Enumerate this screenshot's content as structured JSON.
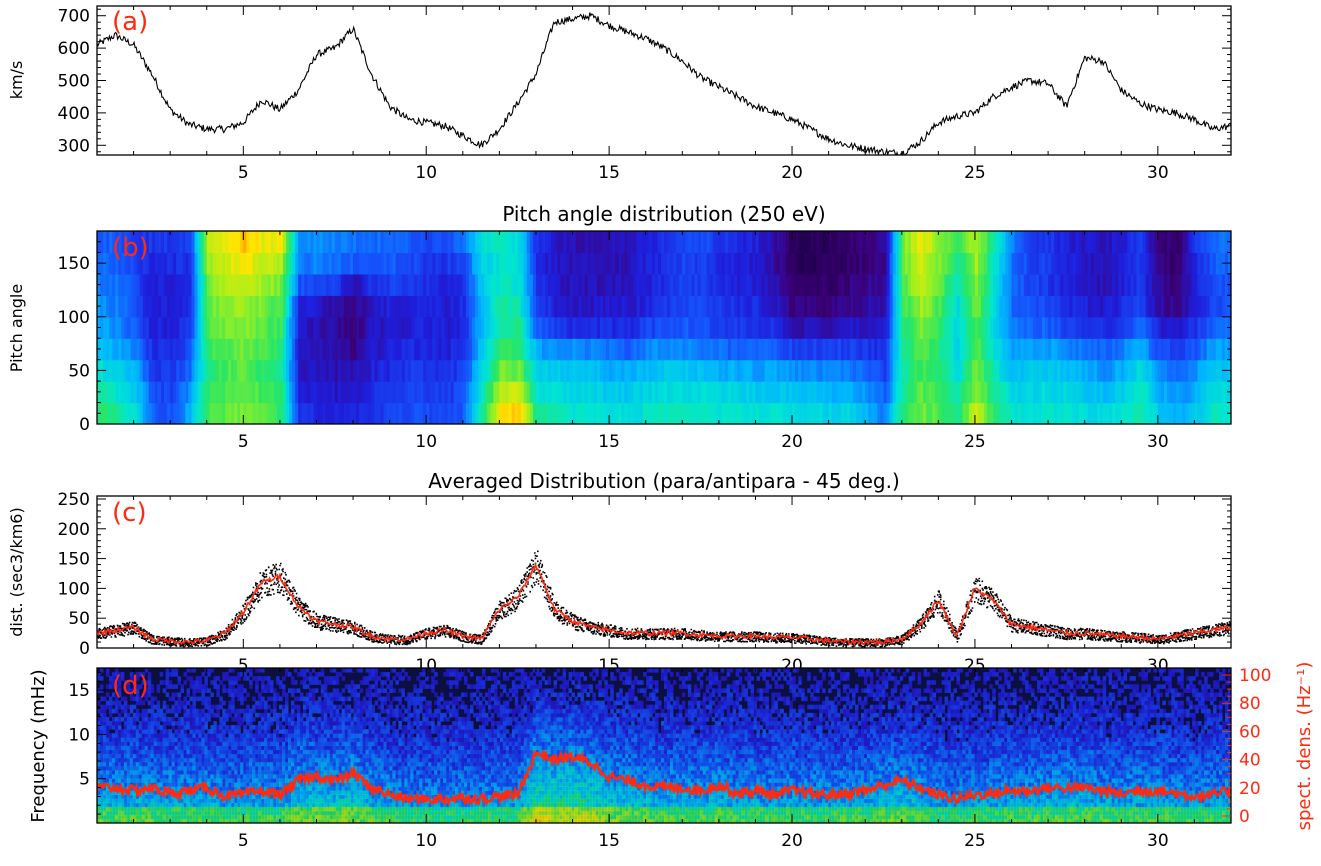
{
  "chart_data": [
    {
      "type": "line",
      "panel_label": "(a)",
      "title": "",
      "xlabel": "",
      "ylabel": "km/s",
      "xlim": [
        1,
        32
      ],
      "ylim": [
        270,
        730
      ],
      "yticks": [
        300,
        400,
        500,
        600,
        700
      ],
      "xticks": [
        5,
        10,
        15,
        20,
        25,
        30
      ],
      "x": [
        1,
        1.5,
        2,
        2.5,
        3,
        3.5,
        4,
        4.5,
        5,
        5.5,
        6,
        6.5,
        7,
        7.5,
        8,
        8.5,
        9,
        9.5,
        10,
        10.5,
        11,
        11.5,
        12,
        12.5,
        13,
        13.5,
        14,
        14.5,
        15,
        15.5,
        16,
        16.5,
        17,
        17.5,
        18,
        18.5,
        19,
        19.5,
        20,
        20.5,
        21,
        21.5,
        22,
        22.5,
        23,
        23.5,
        24,
        24.5,
        25,
        25.5,
        26,
        26.5,
        27,
        27.5,
        28,
        28.5,
        29,
        29.5,
        30,
        30.5,
        31,
        31.5,
        32
      ],
      "series": [
        {
          "values": [
            610,
            640,
            610,
            520,
            410,
            365,
            350,
            350,
            370,
            440,
            410,
            470,
            580,
            600,
            660,
            520,
            420,
            380,
            370,
            360,
            330,
            300,
            350,
            430,
            520,
            680,
            690,
            700,
            670,
            650,
            630,
            600,
            560,
            510,
            480,
            450,
            420,
            400,
            380,
            350,
            320,
            300,
            290,
            280,
            275,
            310,
            370,
            390,
            400,
            450,
            480,
            500,
            490,
            420,
            570,
            560,
            470,
            430,
            410,
            400,
            380,
            350,
            360
          ]
        }
      ]
    },
    {
      "type": "heatmap",
      "panel_label": "(b)",
      "title": "Pitch angle distribution (250 eV)",
      "xlabel": "",
      "ylabel": "Pitch angle",
      "xlim": [
        1,
        32
      ],
      "ylim": [
        0,
        180
      ],
      "yticks": [
        0,
        50,
        100,
        150
      ],
      "xticks": [
        5,
        10,
        15,
        20,
        25,
        30
      ],
      "y_bins": [
        10,
        30,
        50,
        70,
        90,
        110,
        130,
        150,
        170
      ],
      "x_bins": [
        1.25,
        1.75,
        2.25,
        2.75,
        3.25,
        3.75,
        4.25,
        4.75,
        5.25,
        5.75,
        6.25,
        6.75,
        7.25,
        7.75,
        8.25,
        8.75,
        9.25,
        9.75,
        10.25,
        10.75,
        11.25,
        11.75,
        12.25,
        12.75,
        13.25,
        13.75,
        14.25,
        14.75,
        15.25,
        15.75,
        16.25,
        16.75,
        17.25,
        17.75,
        18.25,
        18.75,
        19.25,
        19.75,
        20.25,
        20.75,
        21.25,
        21.75,
        22.25,
        22.75,
        23.25,
        23.75,
        24.25,
        24.75,
        25.25,
        25.75,
        26.25,
        26.75,
        27.25,
        27.75,
        28.25,
        28.75,
        29.25,
        29.75,
        30.25,
        30.75,
        31.25,
        31.75
      ],
      "z": [
        [
          0.6,
          0.55,
          0.5,
          0.42,
          0.38,
          0.36,
          0.34,
          0.32,
          0.3
        ],
        [
          0.55,
          0.5,
          0.45,
          0.4,
          0.36,
          0.34,
          0.33,
          0.31,
          0.3
        ],
        [
          0.5,
          0.45,
          0.4,
          0.34,
          0.3,
          0.28,
          0.27,
          0.26,
          0.25
        ],
        [
          0.3,
          0.28,
          0.25,
          0.22,
          0.2,
          0.2,
          0.2,
          0.22,
          0.24
        ],
        [
          0.28,
          0.26,
          0.24,
          0.22,
          0.2,
          0.19,
          0.2,
          0.22,
          0.24
        ],
        [
          0.4,
          0.36,
          0.32,
          0.28,
          0.24,
          0.22,
          0.22,
          0.24,
          0.26
        ],
        [
          0.62,
          0.6,
          0.58,
          0.6,
          0.62,
          0.64,
          0.66,
          0.7,
          0.72
        ],
        [
          0.65,
          0.64,
          0.62,
          0.64,
          0.66,
          0.68,
          0.72,
          0.75,
          0.78
        ],
        [
          0.66,
          0.65,
          0.64,
          0.66,
          0.68,
          0.7,
          0.75,
          0.8,
          0.85
        ],
        [
          0.63,
          0.62,
          0.6,
          0.62,
          0.64,
          0.66,
          0.7,
          0.74,
          0.76
        ],
        [
          0.6,
          0.58,
          0.56,
          0.58,
          0.6,
          0.62,
          0.66,
          0.72,
          0.8
        ],
        [
          0.22,
          0.2,
          0.18,
          0.17,
          0.18,
          0.2,
          0.28,
          0.34,
          0.36
        ],
        [
          0.22,
          0.2,
          0.18,
          0.16,
          0.16,
          0.18,
          0.28,
          0.34,
          0.36
        ],
        [
          0.2,
          0.18,
          0.16,
          0.14,
          0.13,
          0.14,
          0.26,
          0.32,
          0.34
        ],
        [
          0.2,
          0.17,
          0.15,
          0.12,
          0.11,
          0.12,
          0.14,
          0.3,
          0.33
        ],
        [
          0.24,
          0.22,
          0.2,
          0.18,
          0.17,
          0.18,
          0.24,
          0.3,
          0.32
        ],
        [
          0.26,
          0.24,
          0.22,
          0.2,
          0.18,
          0.2,
          0.26,
          0.3,
          0.32
        ],
        [
          0.28,
          0.26,
          0.24,
          0.22,
          0.2,
          0.21,
          0.25,
          0.28,
          0.3
        ],
        [
          0.28,
          0.26,
          0.24,
          0.22,
          0.2,
          0.2,
          0.22,
          0.24,
          0.28
        ],
        [
          0.26,
          0.24,
          0.22,
          0.2,
          0.19,
          0.19,
          0.21,
          0.24,
          0.28
        ],
        [
          0.3,
          0.28,
          0.26,
          0.24,
          0.22,
          0.22,
          0.24,
          0.28,
          0.32
        ],
        [
          0.55,
          0.52,
          0.48,
          0.44,
          0.42,
          0.42,
          0.44,
          0.46,
          0.5
        ],
        [
          0.8,
          0.72,
          0.66,
          0.6,
          0.56,
          0.54,
          0.52,
          0.5,
          0.52
        ],
        [
          0.84,
          0.74,
          0.66,
          0.6,
          0.56,
          0.52,
          0.5,
          0.48,
          0.48
        ],
        [
          0.55,
          0.5,
          0.44,
          0.38,
          0.3,
          0.26,
          0.24,
          0.22,
          0.22
        ],
        [
          0.52,
          0.48,
          0.44,
          0.36,
          0.24,
          0.2,
          0.18,
          0.18,
          0.18
        ],
        [
          0.5,
          0.46,
          0.44,
          0.36,
          0.22,
          0.18,
          0.16,
          0.16,
          0.16
        ],
        [
          0.5,
          0.46,
          0.42,
          0.34,
          0.22,
          0.18,
          0.16,
          0.16,
          0.16
        ],
        [
          0.48,
          0.44,
          0.4,
          0.32,
          0.22,
          0.18,
          0.17,
          0.16,
          0.16
        ],
        [
          0.48,
          0.44,
          0.4,
          0.3,
          0.22,
          0.18,
          0.17,
          0.16,
          0.16
        ],
        [
          0.5,
          0.46,
          0.42,
          0.34,
          0.26,
          0.22,
          0.2,
          0.2,
          0.2
        ],
        [
          0.52,
          0.48,
          0.44,
          0.36,
          0.28,
          0.24,
          0.22,
          0.22,
          0.22
        ],
        [
          0.52,
          0.48,
          0.44,
          0.36,
          0.3,
          0.28,
          0.26,
          0.26,
          0.28
        ],
        [
          0.52,
          0.48,
          0.42,
          0.34,
          0.28,
          0.26,
          0.25,
          0.26,
          0.28
        ],
        [
          0.5,
          0.46,
          0.4,
          0.32,
          0.26,
          0.24,
          0.22,
          0.22,
          0.24
        ],
        [
          0.5,
          0.46,
          0.4,
          0.3,
          0.24,
          0.22,
          0.2,
          0.2,
          0.22
        ],
        [
          0.5,
          0.44,
          0.38,
          0.3,
          0.24,
          0.22,
          0.2,
          0.19,
          0.2
        ],
        [
          0.5,
          0.44,
          0.38,
          0.3,
          0.22,
          0.18,
          0.16,
          0.14,
          0.14
        ],
        [
          0.48,
          0.42,
          0.36,
          0.26,
          0.16,
          0.1,
          0.08,
          0.06,
          0.06
        ],
        [
          0.48,
          0.42,
          0.36,
          0.26,
          0.16,
          0.1,
          0.07,
          0.05,
          0.05
        ],
        [
          0.46,
          0.4,
          0.34,
          0.26,
          0.16,
          0.1,
          0.08,
          0.05,
          0.05
        ],
        [
          0.46,
          0.4,
          0.34,
          0.26,
          0.18,
          0.12,
          0.1,
          0.08,
          0.08
        ],
        [
          0.4,
          0.36,
          0.3,
          0.24,
          0.18,
          0.14,
          0.12,
          0.1,
          0.1
        ],
        [
          0.34,
          0.3,
          0.26,
          0.22,
          0.18,
          0.16,
          0.14,
          0.12,
          0.12
        ],
        [
          0.58,
          0.56,
          0.54,
          0.56,
          0.58,
          0.6,
          0.62,
          0.64,
          0.66
        ],
        [
          0.66,
          0.64,
          0.62,
          0.64,
          0.66,
          0.7,
          0.74,
          0.76,
          0.78
        ],
        [
          0.62,
          0.6,
          0.58,
          0.58,
          0.6,
          0.62,
          0.64,
          0.66,
          0.68
        ],
        [
          0.56,
          0.52,
          0.48,
          0.46,
          0.46,
          0.48,
          0.52,
          0.56,
          0.6
        ],
        [
          0.74,
          0.7,
          0.66,
          0.64,
          0.64,
          0.66,
          0.68,
          0.7,
          0.72
        ],
        [
          0.6,
          0.56,
          0.52,
          0.48,
          0.46,
          0.46,
          0.48,
          0.5,
          0.54
        ],
        [
          0.5,
          0.46,
          0.42,
          0.38,
          0.34,
          0.32,
          0.32,
          0.32,
          0.34
        ],
        [
          0.5,
          0.46,
          0.44,
          0.38,
          0.32,
          0.28,
          0.26,
          0.26,
          0.26
        ],
        [
          0.5,
          0.48,
          0.44,
          0.38,
          0.3,
          0.26,
          0.24,
          0.24,
          0.24
        ],
        [
          0.5,
          0.46,
          0.42,
          0.34,
          0.26,
          0.22,
          0.2,
          0.2,
          0.2
        ],
        [
          0.48,
          0.44,
          0.4,
          0.32,
          0.24,
          0.2,
          0.18,
          0.18,
          0.18
        ],
        [
          0.46,
          0.42,
          0.36,
          0.3,
          0.22,
          0.18,
          0.16,
          0.16,
          0.16
        ],
        [
          0.5,
          0.46,
          0.4,
          0.34,
          0.26,
          0.22,
          0.2,
          0.2,
          0.2
        ],
        [
          0.56,
          0.52,
          0.48,
          0.4,
          0.32,
          0.26,
          0.24,
          0.24,
          0.24
        ],
        [
          0.44,
          0.4,
          0.36,
          0.28,
          0.2,
          0.14,
          0.12,
          0.1,
          0.1
        ],
        [
          0.4,
          0.36,
          0.32,
          0.26,
          0.18,
          0.12,
          0.1,
          0.08,
          0.08
        ],
        [
          0.44,
          0.4,
          0.36,
          0.3,
          0.24,
          0.2,
          0.2,
          0.22,
          0.24
        ],
        [
          0.52,
          0.48,
          0.44,
          0.38,
          0.32,
          0.28,
          0.28,
          0.3,
          0.32
        ]
      ]
    },
    {
      "type": "line",
      "panel_label": "(c)",
      "title": "Averaged Distribution (para/antipara - 45 deg.)",
      "xlabel": "",
      "ylabel": "dist. (sec3/km6)",
      "xlim": [
        1,
        32
      ],
      "ylim": [
        0,
        255
      ],
      "yticks": [
        0,
        50,
        100,
        150,
        200,
        250
      ],
      "xticks": [
        5,
        10,
        15,
        20,
        25,
        30
      ],
      "x": [
        1,
        1.5,
        2,
        2.5,
        3,
        3.5,
        4,
        4.5,
        5,
        5.5,
        6,
        6.5,
        7,
        7.5,
        8,
        8.5,
        9,
        9.5,
        10,
        10.5,
        11,
        11.5,
        12,
        12.5,
        13,
        13.5,
        14,
        14.5,
        15,
        15.5,
        16,
        16.5,
        17,
        17.5,
        18,
        18.5,
        19,
        19.5,
        20,
        20.5,
        21,
        21.5,
        22,
        22.5,
        23,
        23.5,
        24,
        24.5,
        25,
        25.5,
        26,
        26.5,
        27,
        27.5,
        28,
        28.5,
        29,
        29.5,
        30,
        30.5,
        31,
        31.5,
        32
      ],
      "series": [
        {
          "values": [
            25,
            30,
            35,
            15,
            12,
            10,
            12,
            25,
            60,
            110,
            120,
            70,
            45,
            40,
            35,
            20,
            15,
            15,
            25,
            30,
            20,
            15,
            65,
            85,
            140,
            65,
            45,
            35,
            30,
            25,
            25,
            25,
            25,
            22,
            20,
            20,
            20,
            18,
            18,
            15,
            12,
            10,
            10,
            10,
            15,
            40,
            80,
            20,
            100,
            80,
            40,
            35,
            30,
            25,
            25,
            22,
            20,
            18,
            15,
            20,
            25,
            30,
            35
          ]
        }
      ]
    },
    {
      "type": "heatmap",
      "panel_label": "(d)",
      "title": "",
      "xlabel": "",
      "ylabel": "Frequency (mHz)",
      "y2label": "spect. dens. (Hz⁻¹)",
      "xlim": [
        1,
        32
      ],
      "ylim": [
        0,
        17.5
      ],
      "y2lim": [
        -5,
        105
      ],
      "yticks": [
        5,
        10,
        15
      ],
      "y2ticks": [
        0,
        20,
        40,
        60,
        80,
        100
      ],
      "xticks": [
        5,
        10,
        15,
        20,
        25,
        30
      ],
      "x": [
        1,
        1.5,
        2,
        2.5,
        3,
        3.5,
        4,
        4.5,
        5,
        5.5,
        6,
        6.5,
        7,
        7.5,
        8,
        8.5,
        9,
        9.5,
        10,
        10.5,
        11,
        11.5,
        12,
        12.5,
        13,
        13.5,
        14,
        14.5,
        15,
        15.5,
        16,
        16.5,
        17,
        17.5,
        18,
        18.5,
        19,
        19.5,
        20,
        20.5,
        21,
        21.5,
        22,
        22.5,
        23,
        23.5,
        24,
        24.5,
        25,
        25.5,
        26,
        26.5,
        27,
        27.5,
        28,
        28.5,
        29,
        29.5,
        30,
        30.5,
        31,
        31.5,
        32
      ],
      "series": [
        {
          "name": "spect. dens.",
          "values": [
            20,
            20,
            18,
            20,
            16,
            18,
            20,
            14,
            15,
            18,
            15,
            25,
            28,
            25,
            30,
            20,
            15,
            12,
            12,
            12,
            13,
            12,
            14,
            15,
            45,
            40,
            42,
            38,
            28,
            25,
            22,
            20,
            20,
            18,
            22,
            16,
            18,
            15,
            18,
            16,
            15,
            16,
            18,
            22,
            25,
            20,
            15,
            12,
            15,
            16,
            18,
            18,
            20,
            20,
            20,
            18,
            16,
            18,
            18,
            16,
            14,
            15,
            18
          ]
        }
      ]
    }
  ]
}
